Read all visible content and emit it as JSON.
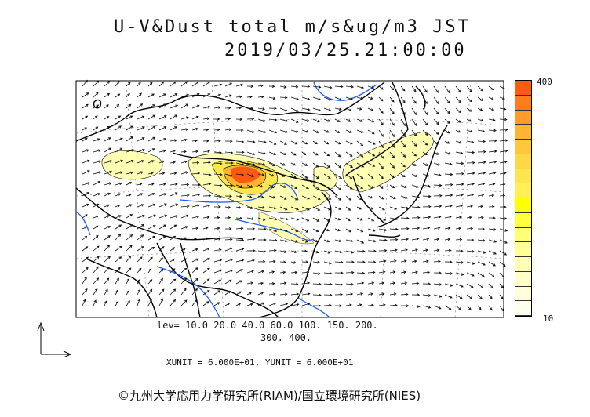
{
  "title": "U-V&Dust total m/s&ug/m3 JST",
  "timestamp": "2019/03/25.21:00:00",
  "colorbar": {
    "max_label": "400",
    "min_label": "10",
    "colors": [
      "#ff5a14",
      "#ff7d1e",
      "#ff9b28",
      "#ffb432",
      "#ffc83c",
      "#ffd846",
      "#ffe650",
      "#fff05a",
      "#ffff00",
      "#ffff3c",
      "#ffff78",
      "#ffff96",
      "#ffffb4",
      "#ffffc8",
      "#ffffdc",
      "#ffffee"
    ]
  },
  "levels_line1": "lev= 10.0 20.0 40.0 60.0 100. 150. 200.",
  "levels_line2": "300. 400.",
  "units_line": "XUNIT = 6.000E+01, YUNIT = 6.000E+01",
  "credit": "©九州大学応用力学研究所(RIAM)/国立環境研究所(NIES)",
  "colors": {
    "coast": "#000000",
    "river": "#1e5aff",
    "dust_low": "#ffffb4",
    "dust_mid": "#ffe650",
    "dust_high": "#ff5a14"
  }
}
